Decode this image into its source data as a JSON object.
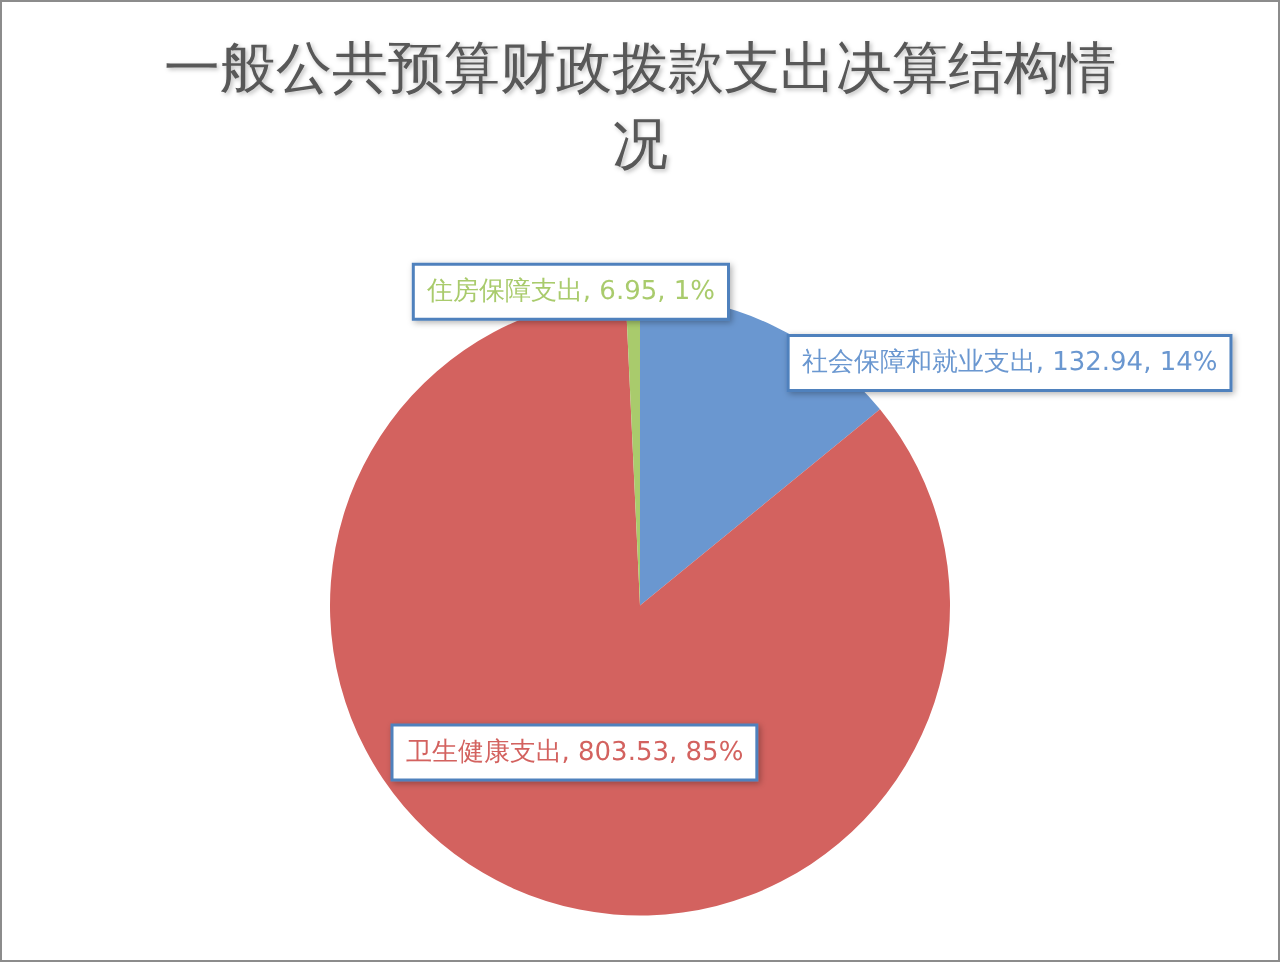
{
  "chart_data": {
    "type": "pie",
    "title": "一般公共预算财政拨款支出决算结构情况",
    "categories": [
      "社会保障和就业支出",
      "卫生健康支出",
      "住房保障支出"
    ],
    "values": [
      132.94,
      803.53,
      6.95
    ],
    "colors": [
      "#6a97d0",
      "#d3625f",
      "#a9cb6c"
    ],
    "value_labels": [
      "132.94, 14%",
      "803.53, 85%",
      "6.95, 1%"
    ]
  }
}
